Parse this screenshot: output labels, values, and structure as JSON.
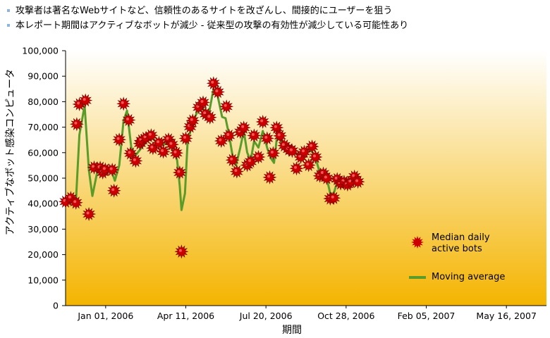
{
  "notes": [
    "攻撃者は著名なWebサイトなど、信頼性のあるサイトを改ざんし、間接的にユーザーを狙う",
    "本レポート期間はアクティブなボットが減少 - 従来型の攻撃の有効性が減少している可能性あり"
  ],
  "colors": {
    "background_top": "#ffffff",
    "background_bottom": "#f4b400",
    "marker": "#cc0000",
    "moving_average": "#5a9b29",
    "bullet": "#8fb3d9"
  },
  "chart_data": {
    "type": "line",
    "ylabel": "アクティブなボット感染コンピュータ",
    "xlabel": "期間",
    "ylim": [
      0,
      100000
    ],
    "yticks": [
      "100,000",
      "90,000",
      "80,000",
      "70,000",
      "60,000",
      "50,000",
      "40,000",
      "30,000",
      "20,000",
      "10,000",
      "0"
    ],
    "xticks": [
      "Jan 01, 2006",
      "Apr 11, 2006",
      "Jul 20, 2006",
      "Oct 28, 2006",
      "Feb 05, 2007",
      "May 16, 2007"
    ],
    "xlim": [
      "2005-11-28",
      "2007-06-07"
    ],
    "grid": false,
    "legend_position": "bottom-right",
    "series": [
      {
        "name": "Median daily active bots",
        "marker": "star",
        "points": [
          [
            "2005-11-28",
            40800
          ],
          [
            "2005-12-04",
            42200
          ],
          [
            "2005-12-10",
            40400
          ],
          [
            "2005-12-11",
            71200
          ],
          [
            "2005-12-14",
            79000
          ],
          [
            "2005-12-21",
            80500
          ],
          [
            "2005-12-25",
            35900
          ],
          [
            "2005-12-31",
            54200
          ],
          [
            "2006-01-07",
            54100
          ],
          [
            "2006-01-10",
            52200
          ],
          [
            "2006-01-13",
            53400
          ],
          [
            "2006-01-21",
            53300
          ],
          [
            "2006-01-23",
            45100
          ],
          [
            "2006-01-29",
            65100
          ],
          [
            "2006-02-03",
            79200
          ],
          [
            "2006-02-09",
            72800
          ],
          [
            "2006-02-11",
            59700
          ],
          [
            "2006-02-17",
            56800
          ],
          [
            "2006-02-22",
            63600
          ],
          [
            "2006-02-24",
            64800
          ],
          [
            "2006-03-01",
            65800
          ],
          [
            "2006-03-07",
            66800
          ],
          [
            "2006-03-09",
            61800
          ],
          [
            "2006-03-16",
            63900
          ],
          [
            "2006-03-21",
            60400
          ],
          [
            "2006-03-27",
            65200
          ],
          [
            "2006-03-31",
            63200
          ],
          [
            "2006-04-05",
            59900
          ],
          [
            "2006-04-09",
            52200
          ],
          [
            "2006-04-11",
            21200
          ],
          [
            "2006-04-16",
            65600
          ],
          [
            "2006-04-21",
            70200
          ],
          [
            "2006-04-24",
            72600
          ],
          [
            "2006-05-01",
            77800
          ],
          [
            "2006-05-06",
            79700
          ],
          [
            "2006-05-09",
            75200
          ],
          [
            "2006-05-14",
            73800
          ],
          [
            "2006-05-18",
            87200
          ],
          [
            "2006-05-23",
            83800
          ],
          [
            "2006-05-27",
            64600
          ],
          [
            "2006-06-02",
            78100
          ],
          [
            "2006-06-05",
            66700
          ],
          [
            "2006-06-09",
            57100
          ],
          [
            "2006-06-14",
            52600
          ],
          [
            "2006-06-18",
            68100
          ],
          [
            "2006-06-22",
            69800
          ],
          [
            "2006-06-26",
            55100
          ],
          [
            "2006-06-30",
            56500
          ],
          [
            "2006-07-04",
            66700
          ],
          [
            "2006-07-09",
            58300
          ],
          [
            "2006-07-14",
            72100
          ],
          [
            "2006-07-19",
            65600
          ],
          [
            "2006-07-22",
            50300
          ],
          [
            "2006-07-26",
            59800
          ],
          [
            "2006-07-30",
            69800
          ],
          [
            "2006-08-03",
            66600
          ],
          [
            "2006-08-08",
            62800
          ],
          [
            "2006-08-13",
            61300
          ],
          [
            "2006-08-17",
            60700
          ],
          [
            "2006-08-22",
            53800
          ],
          [
            "2006-08-27",
            58300
          ],
          [
            "2006-08-31",
            60300
          ],
          [
            "2006-09-05",
            55100
          ],
          [
            "2006-09-09",
            62400
          ],
          [
            "2006-09-13",
            58300
          ],
          [
            "2006-09-18",
            50900
          ],
          [
            "2006-09-22",
            51800
          ],
          [
            "2006-09-26",
            50000
          ],
          [
            "2006-09-30",
            42000
          ],
          [
            "2006-10-04",
            42200
          ],
          [
            "2006-10-08",
            49600
          ],
          [
            "2006-10-12",
            47900
          ],
          [
            "2006-10-16",
            48600
          ],
          [
            "2006-10-20",
            47500
          ],
          [
            "2006-10-24",
            48500
          ],
          [
            "2006-10-28",
            50600
          ],
          [
            "2006-11-01",
            48600
          ]
        ]
      },
      {
        "name": "Moving average",
        "marker": "line",
        "points": [
          [
            "2005-11-28",
            41000
          ],
          [
            "2005-12-04",
            42000
          ],
          [
            "2005-12-10",
            41000
          ],
          [
            "2005-12-14",
            67000
          ],
          [
            "2005-12-20",
            78500
          ],
          [
            "2005-12-25",
            53000
          ],
          [
            "2005-12-29",
            43000
          ],
          [
            "2006-01-03",
            51500
          ],
          [
            "2006-01-07",
            55000
          ],
          [
            "2006-01-13",
            52000
          ],
          [
            "2006-01-19",
            54000
          ],
          [
            "2006-01-24",
            49000
          ],
          [
            "2006-01-29",
            55000
          ],
          [
            "2006-02-03",
            72500
          ],
          [
            "2006-02-07",
            76500
          ],
          [
            "2006-02-12",
            62000
          ],
          [
            "2006-02-17",
            59000
          ],
          [
            "2006-02-24",
            62000
          ],
          [
            "2006-03-03",
            65000
          ],
          [
            "2006-03-09",
            65500
          ],
          [
            "2006-03-16",
            63000
          ],
          [
            "2006-03-24",
            63500
          ],
          [
            "2006-03-31",
            63000
          ],
          [
            "2006-04-06",
            57000
          ],
          [
            "2006-04-09",
            47000
          ],
          [
            "2006-04-11",
            37500
          ],
          [
            "2006-04-15",
            44000
          ],
          [
            "2006-04-18",
            64000
          ],
          [
            "2006-04-24",
            72000
          ],
          [
            "2006-05-02",
            78000
          ],
          [
            "2006-05-07",
            77000
          ],
          [
            "2006-05-12",
            74000
          ],
          [
            "2006-05-18",
            85000
          ],
          [
            "2006-05-23",
            82000
          ],
          [
            "2006-05-28",
            74000
          ],
          [
            "2006-06-01",
            73500
          ],
          [
            "2006-06-05",
            67000
          ],
          [
            "2006-06-09",
            59000
          ],
          [
            "2006-06-13",
            55000
          ],
          [
            "2006-06-18",
            62000
          ],
          [
            "2006-06-22",
            68500
          ],
          [
            "2006-06-26",
            60000
          ],
          [
            "2006-06-30",
            57000
          ],
          [
            "2006-07-04",
            64500
          ],
          [
            "2006-07-09",
            62000
          ],
          [
            "2006-07-14",
            68500
          ],
          [
            "2006-07-19",
            62000
          ],
          [
            "2006-07-23",
            58000
          ],
          [
            "2006-07-27",
            56000
          ],
          [
            "2006-07-30",
            65000
          ],
          [
            "2006-08-03",
            65500
          ],
          [
            "2006-08-08",
            62000
          ],
          [
            "2006-08-13",
            61000
          ],
          [
            "2006-08-20",
            60000
          ],
          [
            "2006-08-27",
            59000
          ],
          [
            "2006-09-02",
            60000
          ],
          [
            "2006-09-08",
            61000
          ],
          [
            "2006-09-13",
            58000
          ],
          [
            "2006-09-18",
            52000
          ],
          [
            "2006-09-26",
            50000
          ],
          [
            "2006-09-30",
            44000
          ],
          [
            "2006-10-04",
            44000
          ],
          [
            "2006-10-08",
            48500
          ],
          [
            "2006-10-14",
            48000
          ],
          [
            "2006-10-20",
            48000
          ],
          [
            "2006-10-27",
            48500
          ],
          [
            "2006-11-01",
            48500
          ]
        ]
      }
    ]
  }
}
